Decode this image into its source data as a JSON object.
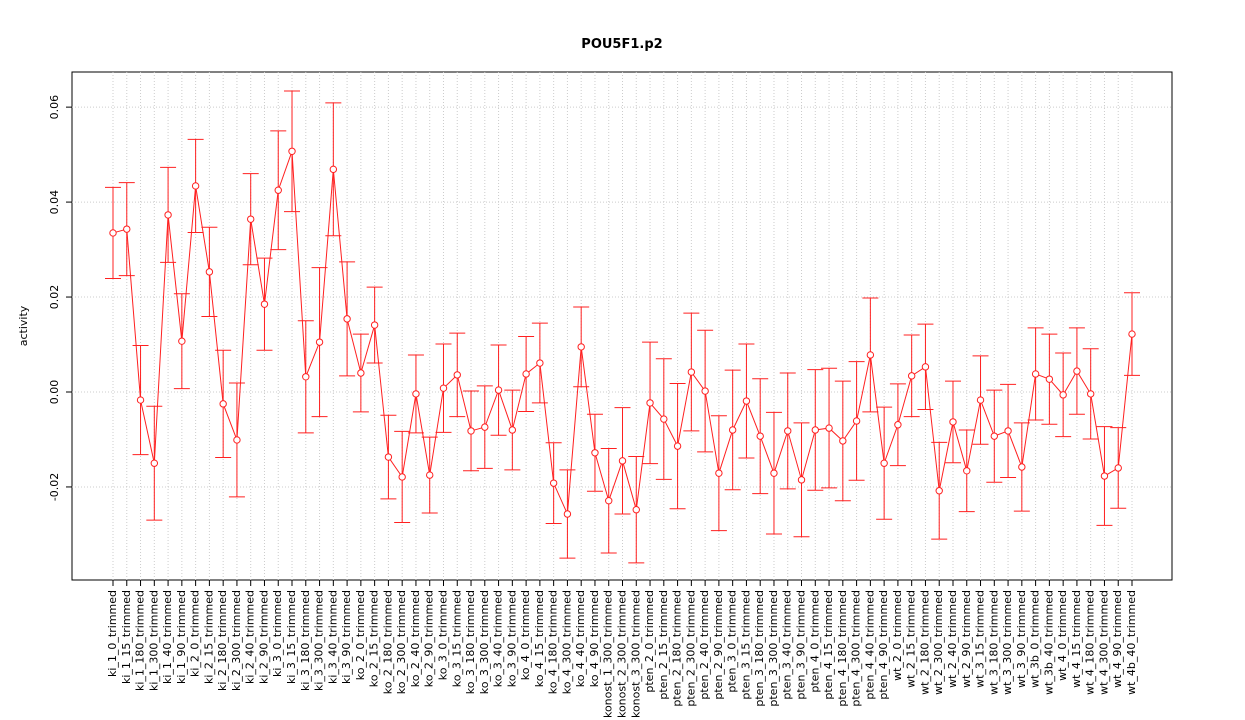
{
  "chart_data": {
    "type": "errorbar-line",
    "title": "POU5F1.p2",
    "ylabel": "activity",
    "color": "#ff2020",
    "grid": true,
    "categories": [
      "ki_1_0_trimmed",
      "ki_1_15_trimmed",
      "ki_1_180_trimmed",
      "ki_1_300_trimmed",
      "ki_1_40_trimmed",
      "ki_1_90_trimmed",
      "ki_2_0_trimmed",
      "ki_2_15_trimmed",
      "ki_2_180_trimmed",
      "ki_2_300_trimmed",
      "ki_2_40_trimmed",
      "ki_2_90_trimmed",
      "ki_3_0_trimmed",
      "ki_3_15_trimmed",
      "ki_3_180_trimmed",
      "ki_3_300_trimmed",
      "ki_3_40_trimmed",
      "ki_3_90_trimmed",
      "ko_2_0_trimmed",
      "ko_2_15_trimmed",
      "ko_2_180_trimmed",
      "ko_2_300_trimmed",
      "ko_2_40_trimmed",
      "ko_2_90_trimmed",
      "ko_3_0_trimmed",
      "ko_3_15_trimmed",
      "ko_3_180_trimmed",
      "ko_3_300_trimmed",
      "ko_3_40_trimmed",
      "ko_3_90_trimmed",
      "ko_4_0_trimmed",
      "ko_4_15_trimmed",
      "ko_4_180_trimmed",
      "ko_4_300_trimmed",
      "ko_4_40_trimmed",
      "ko_4_90_trimmed",
      "konost_1_300_trimmed",
      "konost_2_300_trimmed",
      "konost_3_300_trimmed",
      "pten_2_0_trimmed",
      "pten_2_15_trimmed",
      "pten_2_180_trimmed",
      "pten_2_300_trimmed",
      "pten_2_40_trimmed",
      "pten_2_90_trimmed",
      "pten_3_0_trimmed",
      "pten_3_15_trimmed",
      "pten_3_180_trimmed",
      "pten_3_300_trimmed",
      "pten_3_40_trimmed",
      "pten_3_90_trimmed",
      "pten_4_0_trimmed",
      "pten_4_15_trimmed",
      "pten_4_180_trimmed",
      "pten_4_300_trimmed",
      "pten_4_40_trimmed",
      "pten_4_90_trimmed",
      "wt_2_0_trimmed",
      "wt_2_15_trimmed",
      "wt_2_180_trimmed",
      "wt_2_300_trimmed",
      "wt_2_40_trimmed",
      "wt_2_90_trimmed",
      "wt_3_15_trimmed",
      "wt_3_180_trimmed",
      "wt_3_300_trimmed",
      "wt_3_90_trimmed",
      "wt_3b_0_trimmed",
      "wt_3b_40_trimmed",
      "wt_4_0_trimmed",
      "wt_4_15_trimmed",
      "wt_4_180_trimmed",
      "wt_4_300_trimmed",
      "wt_4_90_trimmed",
      "wt_4b_40_trimmed"
    ],
    "values": [
      0.0335,
      0.0343,
      -0.0017,
      -0.015,
      0.0373,
      0.0107,
      0.0434,
      0.0253,
      -0.0025,
      -0.0101,
      0.0364,
      0.0185,
      0.0425,
      0.0507,
      0.0032,
      0.0105,
      0.0469,
      0.0154,
      0.004,
      0.0141,
      -0.0137,
      -0.0179,
      -0.0004,
      -0.0175,
      0.0008,
      0.0036,
      -0.0082,
      -0.0074,
      0.0004,
      -0.008,
      0.0038,
      0.0061,
      -0.0192,
      -0.0257,
      0.0095,
      -0.0128,
      -0.0229,
      -0.0145,
      -0.0248,
      -0.0023,
      -0.0057,
      -0.0114,
      0.0042,
      0.0002,
      -0.0171,
      -0.008,
      -0.0019,
      -0.0093,
      -0.0171,
      -0.0082,
      -0.0185,
      -0.008,
      -0.0076,
      -0.0103,
      -0.0061,
      0.0078,
      -0.015,
      -0.0069,
      0.0034,
      0.0053,
      -0.0208,
      -0.0063,
      -0.0166,
      -0.0017,
      -0.0093,
      -0.0082,
      -0.0158,
      0.0038,
      0.0027,
      -0.0006,
      0.0044,
      -0.0004,
      -0.0177,
      -0.016,
      0.0122
    ],
    "errors": [
      0.0096,
      0.0098,
      0.0115,
      0.012,
      0.01,
      0.01,
      0.0098,
      0.0094,
      0.0113,
      0.012,
      0.0096,
      0.0097,
      0.0125,
      0.0127,
      0.0118,
      0.0157,
      0.014,
      0.012,
      0.0082,
      0.008,
      0.0088,
      0.0096,
      0.0082,
      0.008,
      0.0093,
      0.0088,
      0.0084,
      0.0087,
      0.0095,
      0.0084,
      0.0079,
      0.0084,
      0.0085,
      0.0093,
      0.0084,
      0.0081,
      0.011,
      0.0112,
      0.0112,
      0.0128,
      0.0127,
      0.0132,
      0.0124,
      0.0128,
      0.0121,
      0.0126,
      0.012,
      0.0121,
      0.0128,
      0.0122,
      0.012,
      0.0127,
      0.0126,
      0.0126,
      0.0125,
      0.012,
      0.0118,
      0.0086,
      0.0086,
      0.009,
      0.0102,
      0.0086,
      0.0086,
      0.0093,
      0.0097,
      0.0098,
      0.0093,
      0.0097,
      0.0095,
      0.0088,
      0.0091,
      0.0095,
      0.0104,
      0.0085,
      0.0087
    ],
    "ylim": [
      -0.0396,
      0.0674
    ],
    "yticks": [
      {
        "value": -0.02,
        "label": "-0.02"
      },
      {
        "value": 0,
        "label": "0.00"
      },
      {
        "value": 0.02,
        "label": "0.02"
      },
      {
        "value": 0.04,
        "label": "0.04"
      },
      {
        "value": 0.06,
        "label": "0.06"
      }
    ]
  }
}
